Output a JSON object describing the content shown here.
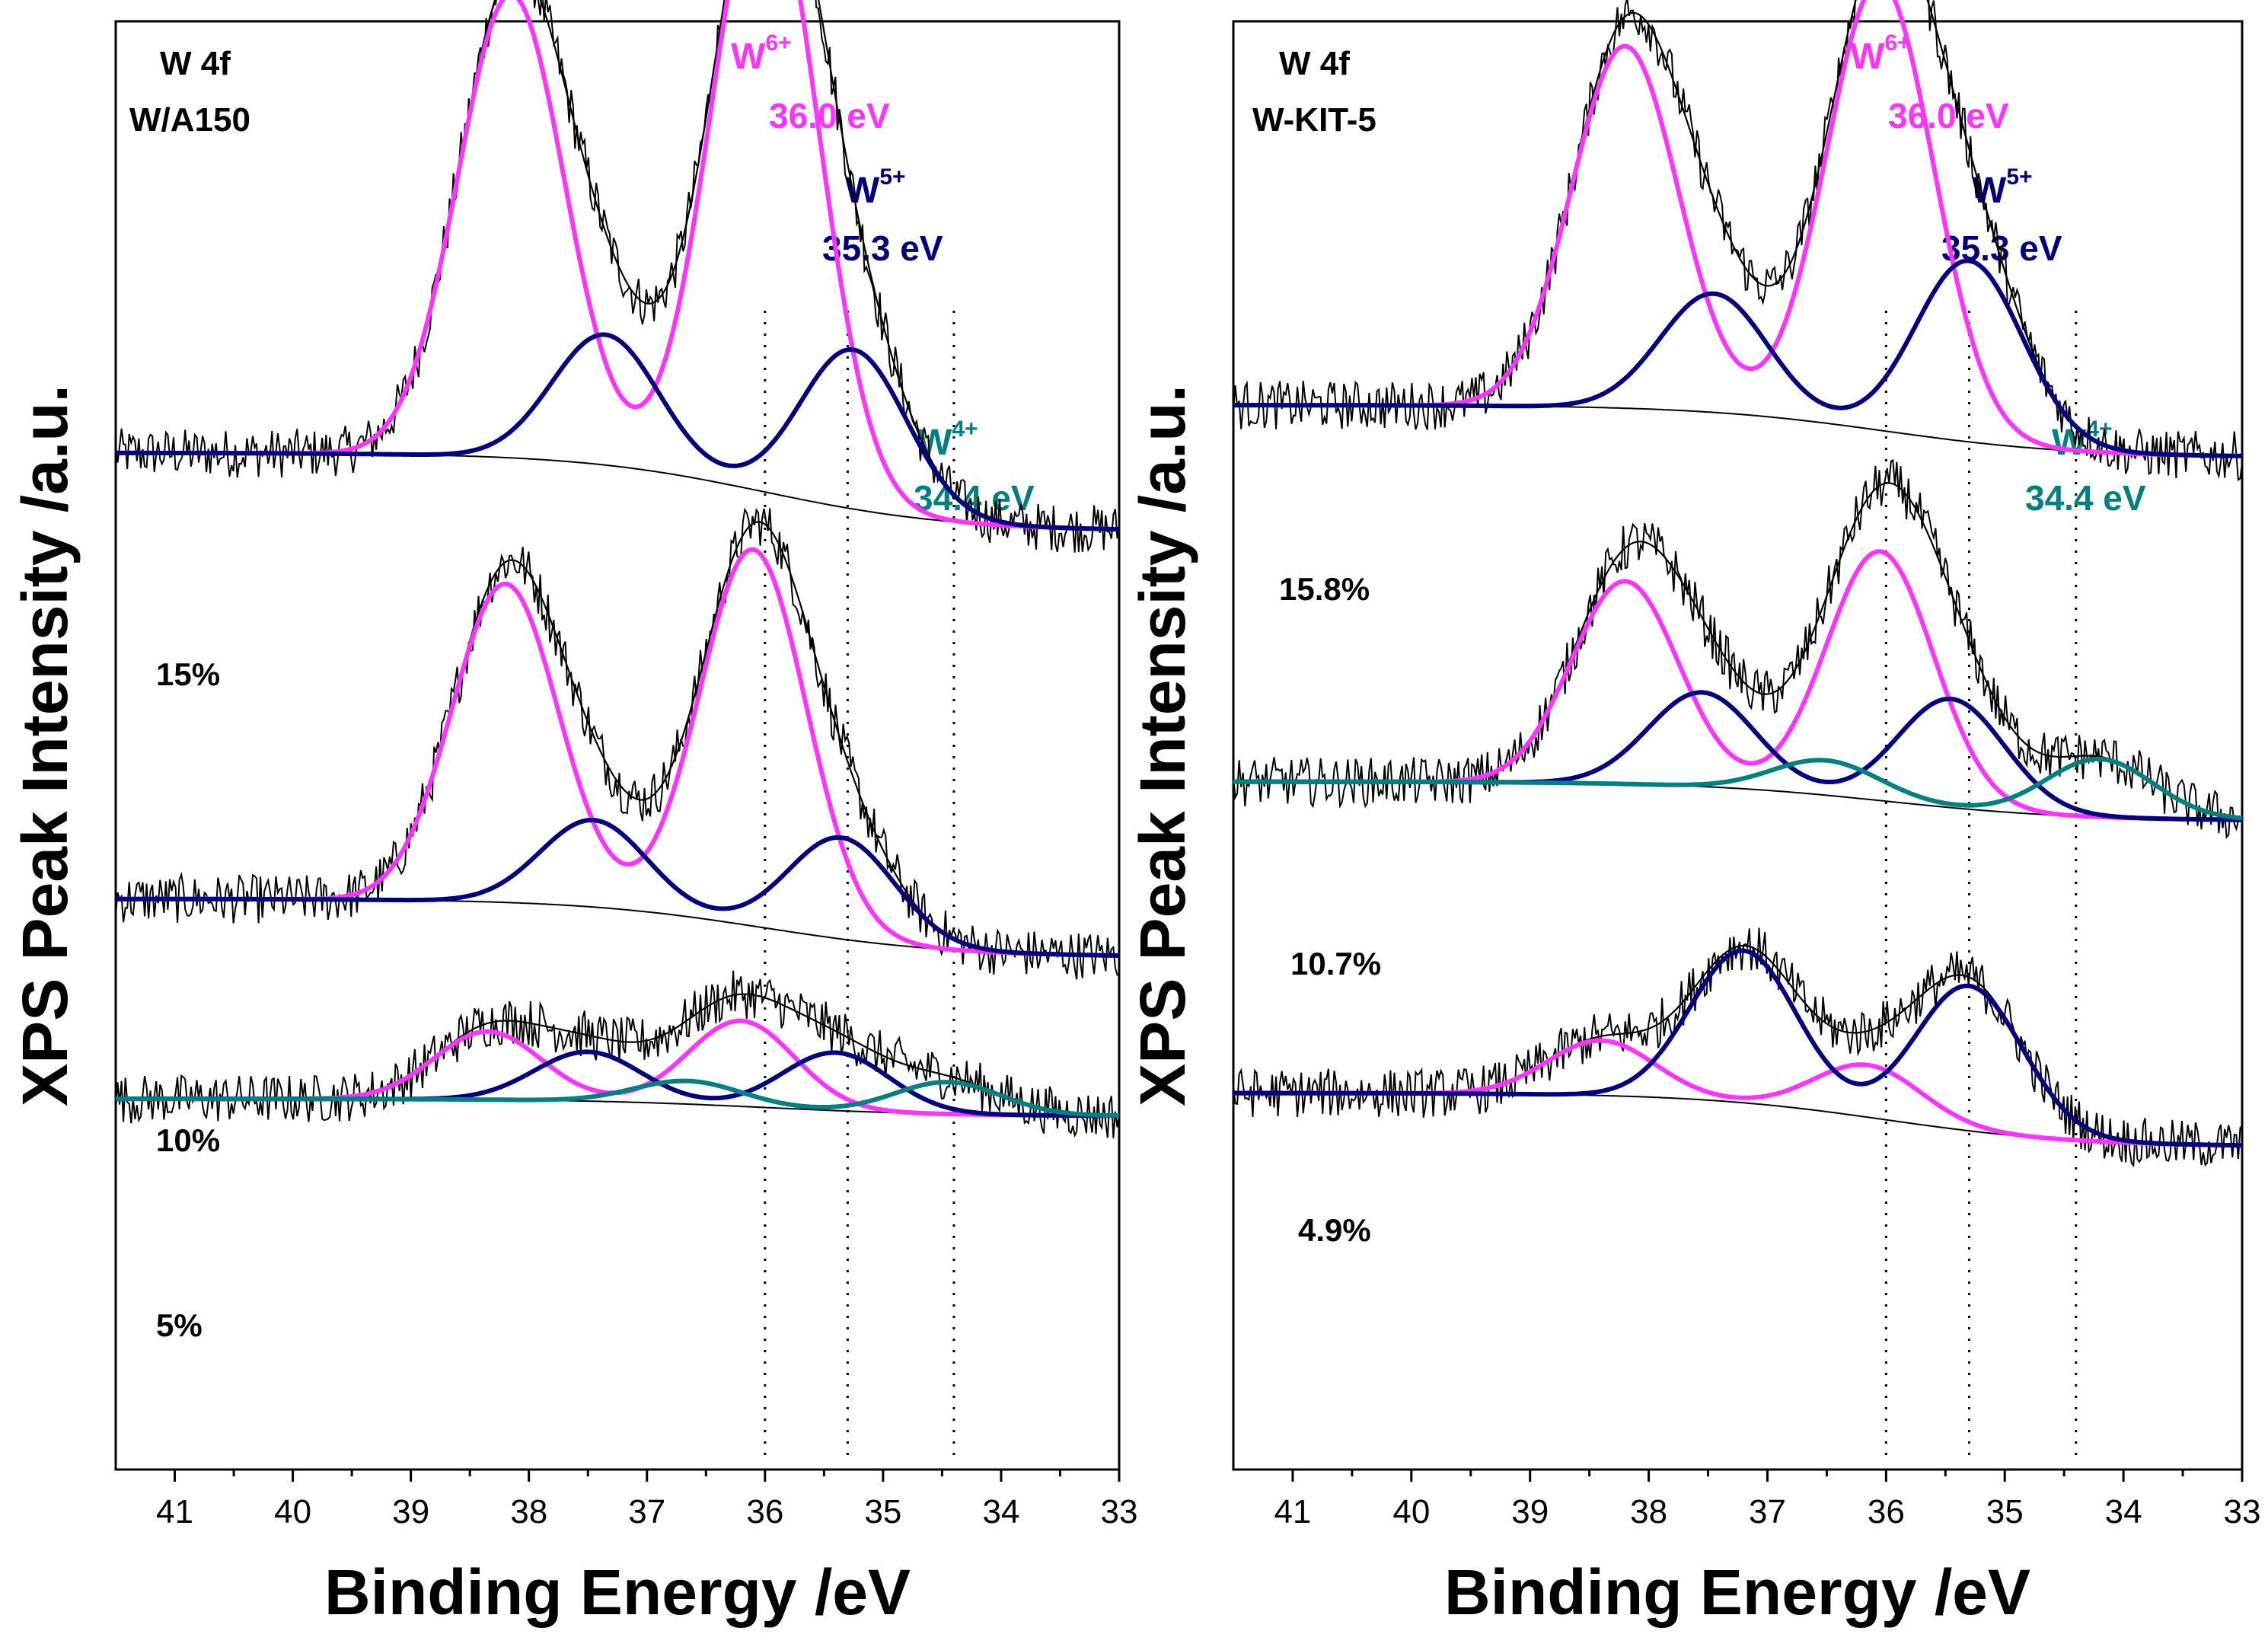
{
  "chart_data": [
    {
      "type": "line",
      "panel": "left",
      "title_lines": [
        "W  4f",
        "W/A150"
      ],
      "xlabel": "Binding Energy /eV",
      "ylabel": "XPS Peak Intensity /a.u.",
      "xlim": [
        41.5,
        33
      ],
      "x_reversed": true,
      "xticks": [
        41,
        40,
        39,
        38,
        37,
        36,
        35,
        34,
        33
      ],
      "grid": false,
      "colors": {
        "raw": "#000000",
        "envelope": "#000000",
        "background": "#000000",
        "W6": "#ff33ff",
        "W5": "#000080",
        "W4": "#008080"
      },
      "states": [
        {
          "label": "W",
          "sup": "6+",
          "energy": "36.0 eV",
          "color": "#ff33ff",
          "position_ev": 36.0
        },
        {
          "label": "W",
          "sup": "5+",
          "energy": "35.3 eV",
          "color": "#000080",
          "position_ev": 35.3
        },
        {
          "label": "W",
          "sup": "4+",
          "energy": "34.4 eV",
          "color": "#008080",
          "position_ev": 34.4
        }
      ],
      "reference_lines_ev": [
        36.0,
        35.3,
        34.4
      ],
      "spectra": [
        {
          "label": "15%",
          "offset": 70.2,
          "components": [
            {
              "name": "W6+",
              "color": "#ff33ff",
              "peaks": [
                {
                  "center": 36.0,
                  "height": 43
                },
                {
                  "center": 38.15,
                  "height": 32
                }
              ]
            },
            {
              "name": "W5+",
              "color": "#000080",
              "peaks": [
                {
                  "center": 35.25,
                  "height": 11
                },
                {
                  "center": 37.35,
                  "height": 9
                }
              ]
            }
          ],
          "background": {
            "high": 70.2,
            "low": 64.8
          }
        },
        {
          "label": "10%",
          "offset": 39.4,
          "components": [
            {
              "name": "W6+",
              "color": "#ff33ff",
              "peaks": [
                {
                  "center": 36.1,
                  "height": 26
                },
                {
                  "center": 38.2,
                  "height": 22
                }
              ]
            },
            {
              "name": "W5+",
              "color": "#000080",
              "peaks": [
                {
                  "center": 35.35,
                  "height": 7
                },
                {
                  "center": 37.45,
                  "height": 6
                }
              ]
            }
          ],
          "background": {
            "high": 39.4,
            "low": 35.4
          }
        },
        {
          "label": "5%",
          "offset": 25.6,
          "components": [
            {
              "name": "W6+",
              "color": "#ff33ff",
              "peaks": [
                {
                  "center": 36.2,
                  "height": 5.9
                },
                {
                  "center": 38.35,
                  "height": 4.7
                }
              ]
            },
            {
              "name": "W5+",
              "color": "#000080",
              "peaks": [
                {
                  "center": 35.4,
                  "height": 4
                },
                {
                  "center": 37.5,
                  "height": 3.4
                }
              ]
            },
            {
              "name": "W4+",
              "color": "#008080",
              "peaks": [
                {
                  "center": 34.45,
                  "height": 2.2
                },
                {
                  "center": 36.65,
                  "height": 1.6
                }
              ]
            }
          ],
          "background": {
            "high": 25.6,
            "low": 24.4
          }
        }
      ]
    },
    {
      "type": "line",
      "panel": "right",
      "title_lines": [
        "W  4f",
        "W-KIT-5"
      ],
      "xlabel": "Binding Energy /eV",
      "ylabel": "XPS Peak Intensity /a.u.",
      "xlim": [
        41.5,
        33
      ],
      "x_reversed": true,
      "xticks": [
        41,
        40,
        39,
        38,
        37,
        36,
        35,
        34,
        33
      ],
      "grid": false,
      "colors": {
        "raw": "#000000",
        "envelope": "#000000",
        "background": "#000000",
        "W6": "#ff33ff",
        "W5": "#000080",
        "W4": "#008080"
      },
      "states": [
        {
          "label": "W",
          "sup": "6+",
          "energy": "36.0 eV",
          "color": "#ff33ff",
          "position_ev": 36.0
        },
        {
          "label": "W",
          "sup": "5+",
          "energy": "35.3 eV",
          "color": "#000080",
          "position_ev": 35.3
        },
        {
          "label": "W",
          "sup": "4+",
          "energy": "34.4 eV",
          "color": "#008080",
          "position_ev": 34.4
        }
      ],
      "reference_lines_ev": [
        36.0,
        35.3,
        34.4
      ],
      "spectra": [
        {
          "label": "15.8%",
          "offset": 73.5,
          "components": [
            {
              "name": "W6+",
              "color": "#ff33ff",
              "peaks": [
                {
                  "center": 36.05,
                  "height": 31
                },
                {
                  "center": 38.2,
                  "height": 25
                }
              ]
            },
            {
              "name": "W5+",
              "color": "#000080",
              "peaks": [
                {
                  "center": 35.3,
                  "height": 12.5
                },
                {
                  "center": 37.45,
                  "height": 8.2
                }
              ]
            }
          ],
          "background": {
            "high": 73.5,
            "low": 69.9
          }
        },
        {
          "label": "10.7%",
          "offset": 47.5,
          "components": [
            {
              "name": "W6+",
              "color": "#ff33ff",
              "peaks": [
                {
                  "center": 36.05,
                  "height": 17.2
                },
                {
                  "center": 38.2,
                  "height": 14
                }
              ]
            },
            {
              "name": "W5+",
              "color": "#000080",
              "peaks": [
                {
                  "center": 35.45,
                  "height": 7.5
                },
                {
                  "center": 37.55,
                  "height": 6.5
                }
              ]
            },
            {
              "name": "W4+",
              "color": "#008080",
              "peaks": [
                {
                  "center": 34.2,
                  "height": 4
                },
                {
                  "center": 36.5,
                  "height": 2.4
                }
              ]
            }
          ],
          "background": {
            "high": 47.5,
            "low": 44.8
          }
        },
        {
          "label": "4.9%",
          "offset": 26.0,
          "components": [
            {
              "name": "W6+",
              "color": "#ff33ff",
              "peaks": [
                {
                  "center": 36.15,
                  "height": 3.6
                },
                {
                  "center": 38.4,
                  "height": 3.8
                }
              ]
            },
            {
              "name": "W5+",
              "color": "#000080",
              "peaks": [
                {
                  "center": 35.3,
                  "height": 10
                },
                {
                  "center": 37.2,
                  "height": 10.5
                }
              ]
            }
          ],
          "background": {
            "high": 26.0,
            "low": 22.3
          }
        }
      ]
    }
  ]
}
